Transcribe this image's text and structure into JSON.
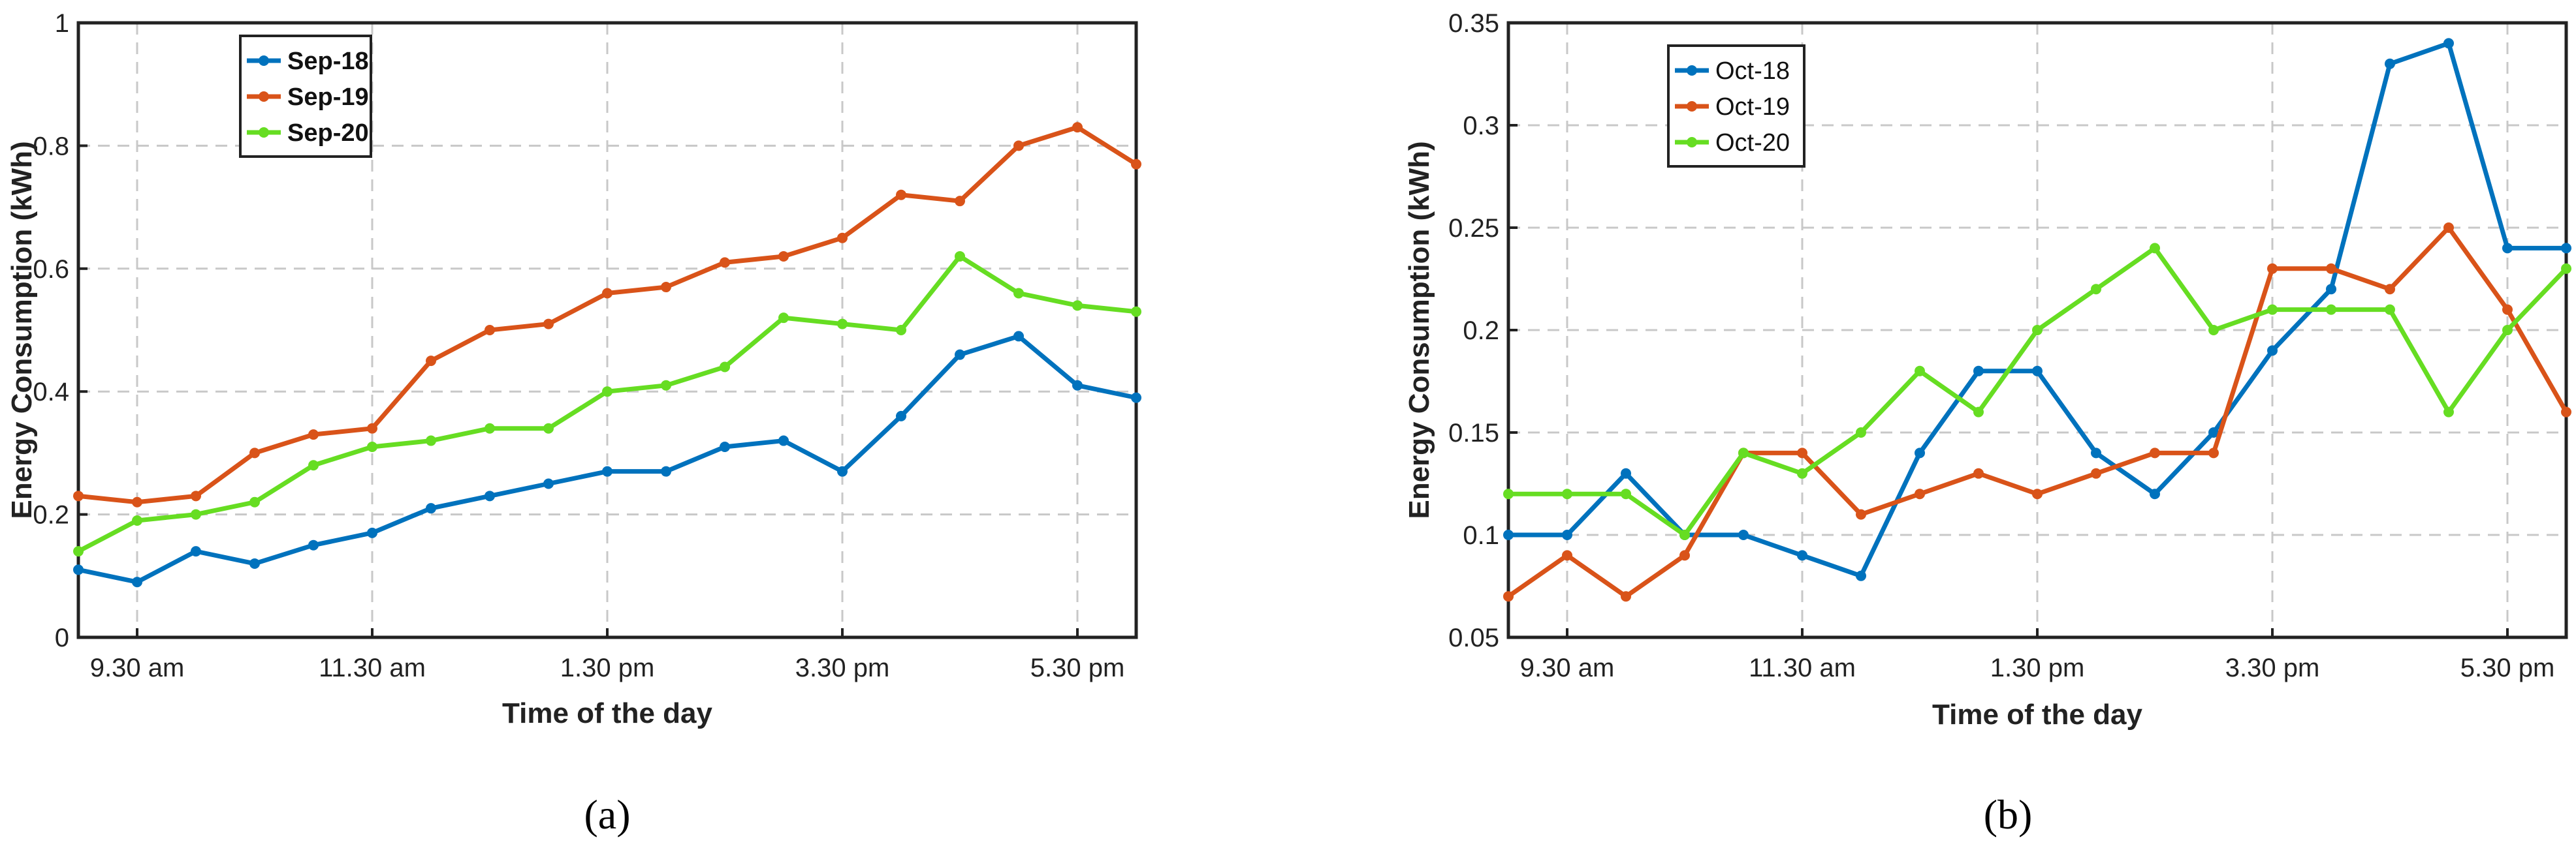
{
  "chart_data": [
    {
      "type": "line",
      "panel_label": "(a)",
      "xlabel": "Time of the day",
      "ylabel": "Energy Consumption (kWh)",
      "ylim": [
        0,
        1
      ],
      "y_ticks": [
        "0",
        "0.2",
        "0.4",
        "0.6",
        "0.8",
        "1"
      ],
      "y_tick_values": [
        0,
        0.2,
        0.4,
        0.6,
        0.8,
        1
      ],
      "x_tick_labels": [
        "9.30 am",
        "11.30 am",
        "1.30 pm",
        "3.30 pm",
        "5.30 pm"
      ],
      "x_tick_indices": [
        1,
        5,
        9,
        13,
        17
      ],
      "grid": true,
      "legend_position": "top-left",
      "series": [
        {
          "name": "Sep-18",
          "color": "#0072BD",
          "values": [
            0.11,
            0.09,
            0.14,
            0.12,
            0.15,
            0.17,
            0.21,
            0.23,
            0.25,
            0.27,
            0.27,
            0.31,
            0.32,
            0.27,
            0.36,
            0.46,
            0.49,
            0.41,
            0.39
          ]
        },
        {
          "name": "Sep-19",
          "color": "#D95319",
          "values": [
            0.23,
            0.22,
            0.23,
            0.3,
            0.33,
            0.34,
            0.45,
            0.5,
            0.51,
            0.56,
            0.57,
            0.61,
            0.62,
            0.65,
            0.72,
            0.71,
            0.8,
            0.83,
            0.77
          ]
        },
        {
          "name": "Sep-20",
          "color": "#66DD22",
          "values": [
            0.14,
            0.19,
            0.2,
            0.22,
            0.28,
            0.31,
            0.32,
            0.34,
            0.34,
            0.4,
            0.41,
            0.44,
            0.52,
            0.51,
            0.5,
            0.62,
            0.56,
            0.54,
            0.53
          ]
        }
      ]
    },
    {
      "type": "line",
      "panel_label": "(b)",
      "xlabel": "Time of the day",
      "ylabel": "Energy Consumption (kWh)",
      "ylim": [
        0.05,
        0.35
      ],
      "y_ticks": [
        "0.05",
        "0.1",
        "0.15",
        "0.2",
        "0.25",
        "0.3",
        "0.35"
      ],
      "y_tick_values": [
        0.05,
        0.1,
        0.15,
        0.2,
        0.25,
        0.3,
        0.35
      ],
      "x_tick_labels": [
        "9.30 am",
        "11.30 am",
        "1.30 pm",
        "3.30 pm",
        "5.30 pm"
      ],
      "x_tick_indices": [
        1,
        5,
        9,
        13,
        17
      ],
      "grid": true,
      "legend_position": "top-left",
      "series": [
        {
          "name": "Oct-18",
          "color": "#0072BD",
          "values": [
            0.1,
            0.1,
            0.13,
            0.1,
            0.1,
            0.09,
            0.08,
            0.14,
            0.18,
            0.18,
            0.14,
            0.12,
            0.15,
            0.19,
            0.22,
            0.33,
            0.34,
            0.24,
            0.24
          ]
        },
        {
          "name": "Oct-19",
          "color": "#D95319",
          "values": [
            0.07,
            0.09,
            0.07,
            0.09,
            0.14,
            0.14,
            0.11,
            0.12,
            0.13,
            0.12,
            0.13,
            0.14,
            0.14,
            0.23,
            0.23,
            0.22,
            0.25,
            0.21,
            0.16
          ]
        },
        {
          "name": "Oct-20",
          "color": "#66DD22",
          "values": [
            0.12,
            0.12,
            0.12,
            0.1,
            0.14,
            0.13,
            0.15,
            0.18,
            0.16,
            0.2,
            0.22,
            0.24,
            0.2,
            0.21,
            0.21,
            0.21,
            0.16,
            0.2,
            0.23
          ]
        }
      ]
    }
  ]
}
